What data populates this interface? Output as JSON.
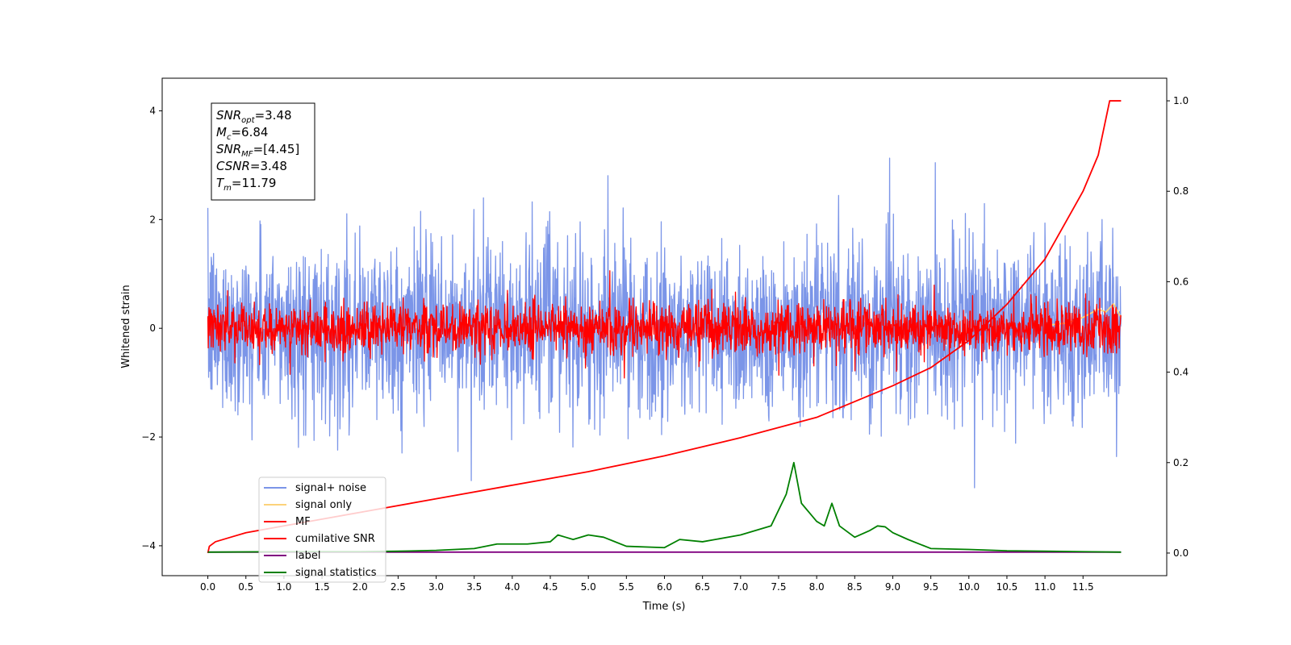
{
  "chart_data": {
    "type": "line",
    "xlabel": "Time (s)",
    "ylabel": "Whitened strain",
    "xlim": [
      -0.6,
      12.6
    ],
    "ylim": [
      -4.55,
      4.6
    ],
    "ylim_right": [
      -0.05,
      1.05
    ],
    "xticks": [
      "0.0",
      "0.5",
      "1.0",
      "1.5",
      "2.0",
      "2.5",
      "3.0",
      "3.5",
      "4.0",
      "4.5",
      "5.0",
      "5.5",
      "6.0",
      "6.5",
      "7.0",
      "7.5",
      "8.0",
      "8.5",
      "9.0",
      "9.5",
      "10.0",
      "10.5",
      "11.0",
      "11.5"
    ],
    "yticks_left": [
      "−4",
      "−2",
      "0",
      "2",
      "4"
    ],
    "yticks_right": [
      "0.0",
      "0.2",
      "0.4",
      "0.6",
      "0.8",
      "1.0"
    ],
    "annotation": {
      "lines": [
        {
          "sym": "SNR",
          "sub": "opt",
          "val": "=3.48"
        },
        {
          "sym": "M",
          "sub": "c",
          "val": "=6.84"
        },
        {
          "sym": "SNR",
          "sub": "MF",
          "val": "=[4.45]"
        },
        {
          "sym": "CSNR",
          "sub": "",
          "val": "=3.48"
        },
        {
          "sym": "T",
          "sub": "m",
          "val": "=11.79"
        }
      ]
    },
    "legend": {
      "placement": "lower-left",
      "entries": [
        {
          "label": "signal+ noise",
          "color": "#7b95e8"
        },
        {
          "label": "signal only",
          "color": "#fcd27a"
        },
        {
          "label": "MF",
          "color": "#ff0000"
        },
        {
          "label": "cumilative SNR",
          "color": "#ff0000"
        },
        {
          "label": "label",
          "color": "#800080"
        },
        {
          "label": "signal statistics",
          "color": "#008000"
        }
      ]
    },
    "series": [
      {
        "name": "signal+ noise",
        "axis": "left",
        "color": "#7b95e8",
        "kind": "noise",
        "x_range": [
          0.0,
          12.0
        ],
        "center": 0.0,
        "amplitude": 1.9,
        "n": 2400
      },
      {
        "name": "signal only",
        "axis": "left",
        "color": "#fcd27a",
        "x": [
          11.0,
          11.3,
          11.5,
          11.7,
          11.8,
          11.9,
          12.0
        ],
        "y": [
          0.05,
          0.1,
          0.2,
          0.35,
          0.3,
          0.45,
          0.2
        ]
      },
      {
        "name": "MF",
        "axis": "left",
        "color": "#ff0000",
        "kind": "noise",
        "x_range": [
          0.0,
          12.0
        ],
        "center": 0.0,
        "amplitude": 0.55,
        "n": 2400
      },
      {
        "name": "cumilative SNR",
        "axis": "right",
        "color": "#ff0000",
        "x": [
          0.0,
          0.02,
          0.1,
          0.3,
          0.5,
          1.0,
          2.0,
          3.0,
          4.0,
          5.0,
          6.0,
          7.0,
          8.0,
          9.0,
          9.5,
          10.0,
          10.5,
          11.0,
          11.5,
          11.7,
          11.85,
          11.95,
          12.0
        ],
        "y": [
          0.0,
          0.015,
          0.025,
          0.035,
          0.045,
          0.06,
          0.09,
          0.12,
          0.15,
          0.18,
          0.215,
          0.255,
          0.3,
          0.37,
          0.41,
          0.47,
          0.55,
          0.65,
          0.8,
          0.88,
          1.0,
          1.0,
          1.0
        ]
      },
      {
        "name": "label",
        "axis": "right",
        "color": "#800080",
        "x": [
          0.0,
          12.0
        ],
        "y": [
          0.002,
          0.002
        ]
      },
      {
        "name": "signal statistics",
        "axis": "right",
        "color": "#008000",
        "x": [
          0.0,
          1.0,
          2.0,
          2.5,
          3.0,
          3.5,
          3.8,
          4.0,
          4.2,
          4.5,
          4.6,
          4.7,
          4.8,
          5.0,
          5.2,
          5.5,
          6.0,
          6.2,
          6.5,
          7.0,
          7.2,
          7.4,
          7.6,
          7.7,
          7.8,
          7.9,
          8.0,
          8.1,
          8.2,
          8.3,
          8.5,
          8.7,
          8.8,
          8.9,
          9.0,
          9.2,
          9.5,
          10.0,
          10.5,
          11.0,
          11.5,
          12.0
        ],
        "y": [
          0.002,
          0.003,
          0.003,
          0.004,
          0.006,
          0.01,
          0.02,
          0.02,
          0.02,
          0.025,
          0.04,
          0.035,
          0.03,
          0.04,
          0.035,
          0.015,
          0.012,
          0.03,
          0.025,
          0.04,
          0.05,
          0.06,
          0.13,
          0.2,
          0.11,
          0.09,
          0.07,
          0.06,
          0.11,
          0.06,
          0.035,
          0.05,
          0.06,
          0.058,
          0.045,
          0.03,
          0.01,
          0.008,
          0.005,
          0.004,
          0.003,
          0.002
        ]
      }
    ]
  }
}
